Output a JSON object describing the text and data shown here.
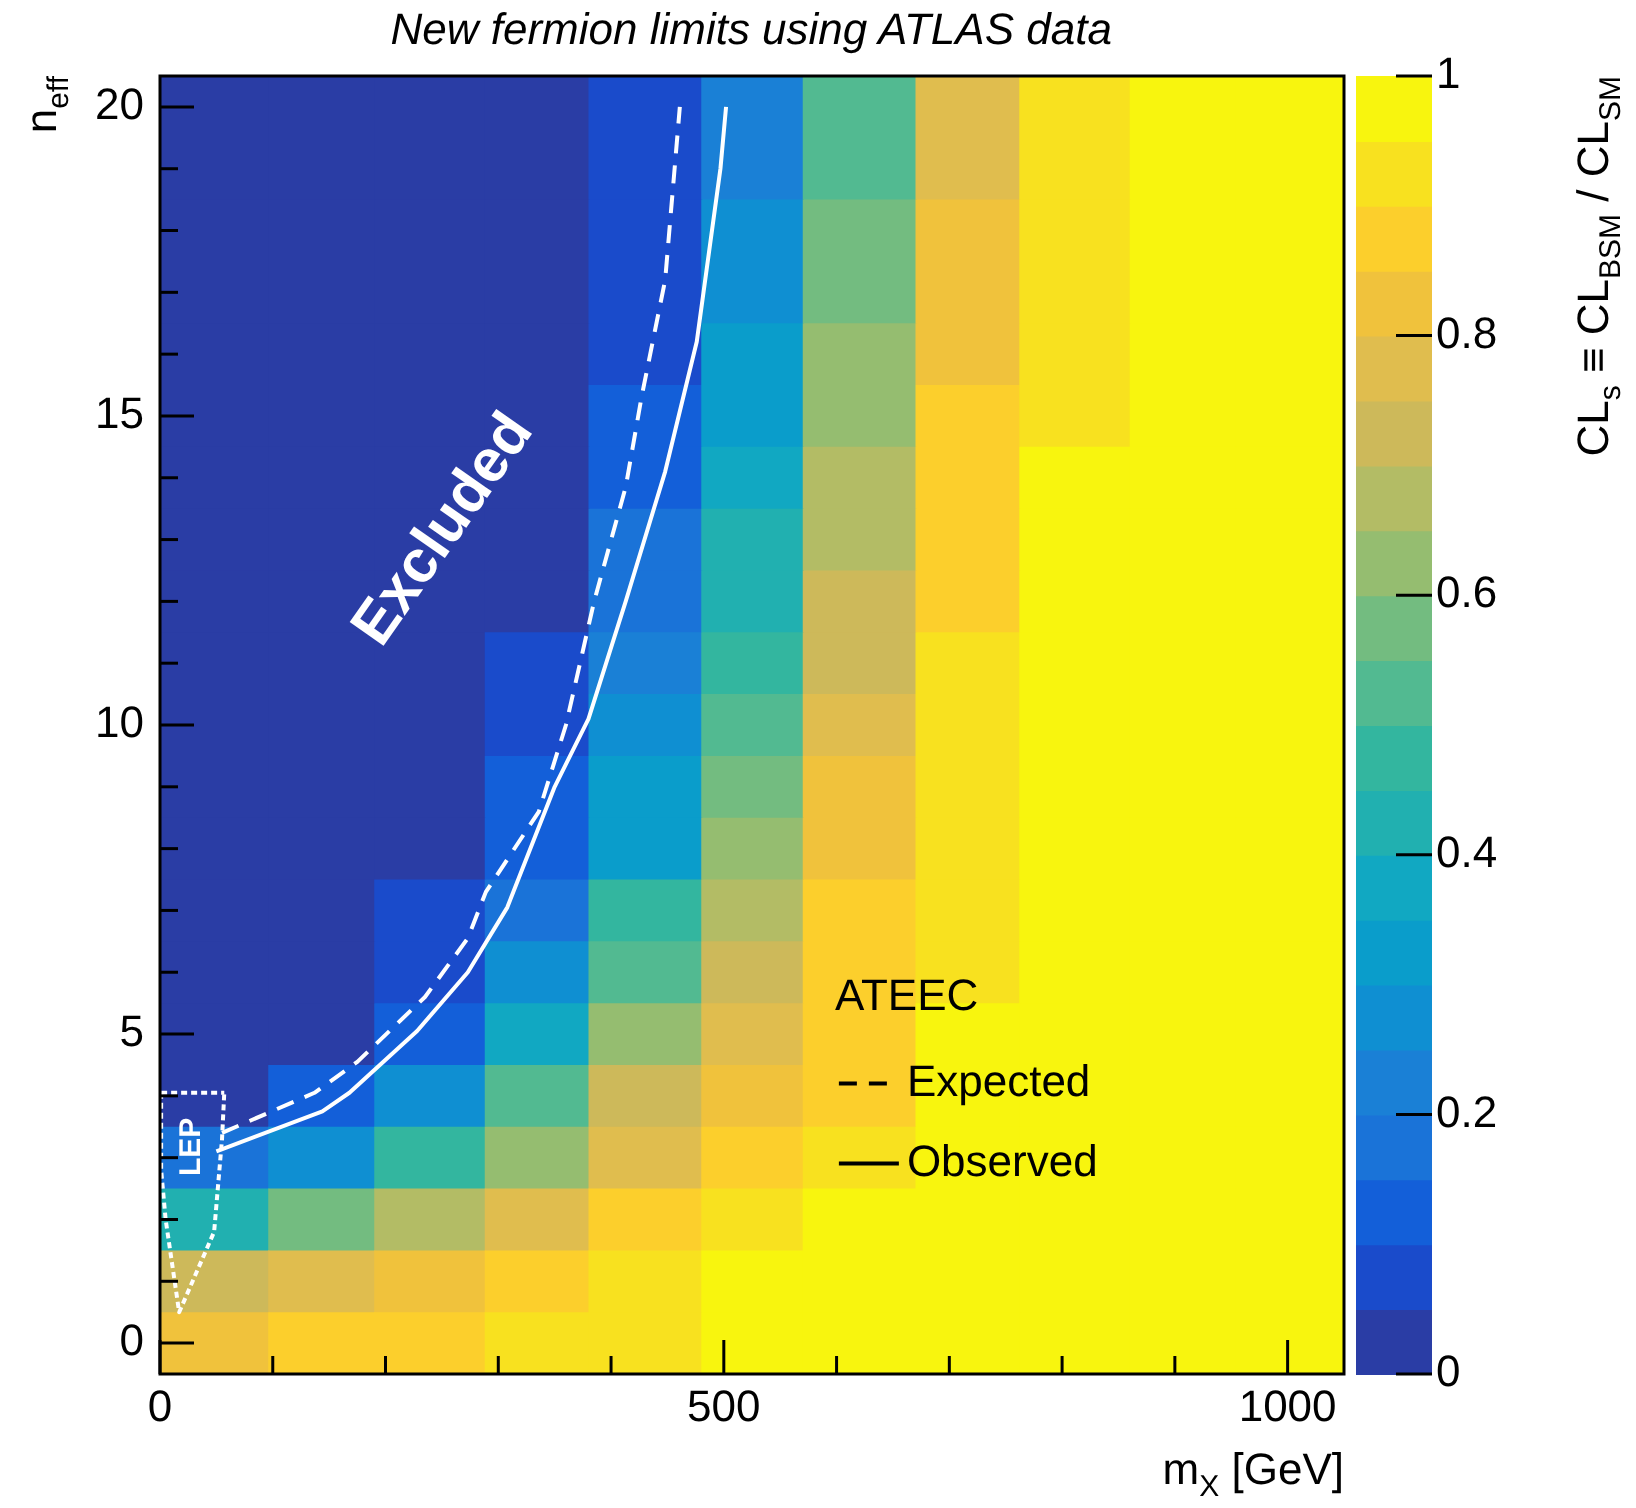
{
  "chart_data": {
    "type": "heatmap",
    "title": "New fermion limits using ATLAS data",
    "xlabel": "m$_{X}$ [GeV]",
    "ylabel": "n$_{eff}$",
    "clabel": "CL$_{s}$ ≡ CL$_{BSM}$ / CL$_{SM}$",
    "legend_title": "ATEEC",
    "legend": "bottom right",
    "x": [
      48,
      143,
      239,
      334,
      430,
      525,
      620,
      716,
      811,
      907,
      1002
    ],
    "y": [
      19.5,
      17.5,
      16,
      15,
      14,
      13,
      12,
      11,
      10,
      9,
      8,
      7,
      6,
      5,
      4,
      3,
      2,
      1,
      0
    ],
    "cells": [
      [
        0,
        0,
        0,
        0,
        0.05,
        0.2,
        0.5,
        0.75,
        0.9,
        1,
        1
      ],
      [
        0,
        0,
        0,
        0,
        0.05,
        0.25,
        0.55,
        0.8,
        0.9,
        1,
        1
      ],
      [
        0,
        0,
        0,
        0,
        0.05,
        0.3,
        0.6,
        0.8,
        0.9,
        1,
        1
      ],
      [
        0,
        0,
        0,
        0,
        0.1,
        0.3,
        0.6,
        0.85,
        0.9,
        1,
        1
      ],
      [
        0,
        0,
        0,
        0,
        0.1,
        0.35,
        0.65,
        0.85,
        1,
        1,
        1
      ],
      [
        0,
        0,
        0,
        0,
        0.15,
        0.4,
        0.65,
        0.85,
        1,
        1,
        1
      ],
      [
        0,
        0,
        0,
        0,
        0.15,
        0.4,
        0.7,
        0.85,
        1,
        1,
        1
      ],
      [
        0,
        0,
        0,
        0.05,
        0.2,
        0.45,
        0.7,
        0.9,
        1,
        1,
        1
      ],
      [
        0,
        0,
        0,
        0.05,
        0.25,
        0.5,
        0.75,
        0.9,
        1,
        1,
        1
      ],
      [
        0,
        0,
        0,
        0.1,
        0.3,
        0.55,
        0.8,
        0.9,
        1,
        1,
        1
      ],
      [
        0,
        0,
        0,
        0.1,
        0.3,
        0.6,
        0.8,
        0.9,
        1,
        1,
        1
      ],
      [
        0,
        0,
        0.05,
        0.15,
        0.45,
        0.65,
        0.85,
        0.9,
        1,
        1,
        1
      ],
      [
        0,
        0,
        0.05,
        0.25,
        0.5,
        0.7,
        0.85,
        0.9,
        1,
        1,
        1
      ],
      [
        0,
        0,
        0.1,
        0.35,
        0.6,
        0.75,
        0.85,
        1,
        1,
        1,
        1
      ],
      [
        0,
        0.1,
        0.25,
        0.5,
        0.7,
        0.8,
        0.85,
        1,
        1,
        1,
        1
      ],
      [
        0.15,
        0.25,
        0.45,
        0.6,
        0.75,
        0.85,
        0.9,
        1,
        1,
        1,
        1
      ],
      [
        0.4,
        0.55,
        0.65,
        0.75,
        0.85,
        0.9,
        1,
        1,
        1,
        1,
        1
      ],
      [
        0.7,
        0.75,
        0.8,
        0.85,
        0.9,
        1,
        1,
        1,
        1,
        1,
        1
      ],
      [
        0.8,
        0.85,
        0.85,
        0.9,
        0.9,
        1,
        1,
        1,
        1,
        1,
        1
      ]
    ],
    "clim": [
      0,
      1
    ],
    "cticks": [
      0,
      0.2,
      0.4,
      0.6,
      0.8,
      1
    ],
    "xlim": [
      0,
      1050
    ],
    "xticks": [
      0,
      {
        "value": 100,
        "label": null
      },
      {
        "value": 200,
        "label": null
      },
      {
        "value": 300,
        "label": null
      },
      {
        "value": 400,
        "label": null
      },
      500,
      {
        "value": 600,
        "label": null
      },
      {
        "value": 700,
        "label": null
      },
      {
        "value": 800,
        "label": null
      },
      {
        "value": 900,
        "label": null
      },
      1000
    ],
    "ylim": [
      -0.5,
      20.5
    ],
    "yticks": [
      0,
      {
        "value": 1,
        "label": null
      },
      {
        "value": 2,
        "label": null
      },
      {
        "value": 3,
        "label": null
      },
      {
        "value": 4,
        "label": null
      },
      5,
      {
        "value": 6,
        "label": null
      },
      {
        "value": 7,
        "label": null
      },
      {
        "value": 8,
        "label": null
      },
      {
        "value": 9,
        "label": null
      },
      10,
      {
        "value": 11,
        "label": null
      },
      {
        "value": 12,
        "label": null
      },
      {
        "value": 13,
        "label": null
      },
      {
        "value": 14,
        "label": null
      },
      15,
      {
        "value": 16,
        "label": null
      },
      {
        "value": 17,
        "label": null
      },
      {
        "value": 18,
        "label": null
      },
      {
        "value": 19,
        "label": null
      },
      20
    ],
    "series": [
      {
        "type": "line",
        "name": "Expected",
        "color": "#ffffff",
        "line_style": "dashed",
        "x": [
          55,
          137,
          175,
          235,
          273,
          289,
          336,
          360,
          385,
          413,
          427,
          448,
          461
        ],
        "values": [
          3.4,
          4.05,
          4.55,
          5.6,
          6.55,
          7.3,
          8.6,
          10,
          12,
          13.85,
          15.3,
          17.2,
          20
        ]
      },
      {
        "type": "line",
        "name": "Observed",
        "color": "#ffffff",
        "line_style": "solid",
        "x": [
          50,
          144,
          168,
          228,
          273,
          308,
          350,
          380,
          413,
          448,
          476,
          497,
          502
        ],
        "values": [
          3.1,
          3.75,
          4.05,
          5.05,
          6,
          7.05,
          9,
          10.1,
          12,
          14.1,
          16.2,
          19,
          20
        ]
      },
      {
        "type": "line",
        "color": "#ffffff",
        "line_style": "dotted",
        "x": [
          1,
          1,
          5,
          17,
          48,
          55,
          57
        ],
        "values": [
          4.05,
          2.8,
          2,
          0.5,
          1.8,
          3.3,
          4.05
        ]
      },
      {
        "type": "line",
        "color": "#ffffff",
        "line_style": "dotted",
        "x": [
          1,
          57
        ],
        "values": [
          4.05,
          4.05
        ]
      }
    ],
    "annotations": [
      "Excluded",
      "LEP"
    ]
  }
}
